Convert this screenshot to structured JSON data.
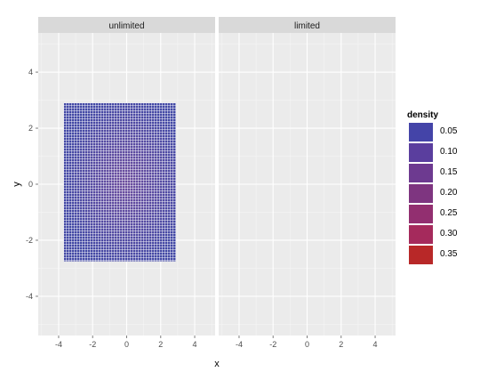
{
  "chart_data": {
    "type": "heatmap",
    "title": "",
    "xlabel": "x",
    "ylabel": "y",
    "facets": [
      {
        "label": "unlimited",
        "xlim": [
          -5.2,
          5.2
        ],
        "ylim": [
          -5.4,
          5.4
        ],
        "tile_region": {
          "x": [
            -3.7,
            2.9
          ],
          "y": [
            -2.75,
            2.9
          ]
        },
        "has_data": true
      },
      {
        "label": "limited",
        "xlim": [
          -5.2,
          5.2
        ],
        "ylim": [
          -5.4,
          5.4
        ],
        "has_data": false
      }
    ],
    "x_ticks": [
      -4,
      -2,
      0,
      2,
      4
    ],
    "y_ticks": [
      -4,
      -2,
      0,
      2,
      4
    ],
    "x_tick_labels": [
      "-4",
      "-2",
      "0",
      "2",
      "4"
    ],
    "y_tick_labels": [
      "-4",
      "-2",
      "0",
      "2",
      "4"
    ],
    "grid": true,
    "legend": {
      "title": "density",
      "position": "right",
      "levels": [
        0.05,
        0.1,
        0.15,
        0.2,
        0.25,
        0.3,
        0.35
      ],
      "labels": [
        "0.05",
        "0.10",
        "0.15",
        "0.20",
        "0.25",
        "0.30",
        "0.35"
      ],
      "colors": [
        "#4444a8",
        "#5a3e9e",
        "#6d3a90",
        "#7e3580",
        "#922f70",
        "#a52a5c",
        "#b82828"
      ]
    },
    "colors": {
      "panel_bg": "#ebebeb",
      "strip_bg": "#d9d9d9",
      "grid_line": "#ffffff",
      "tile_low": "#3f45a3",
      "tile_center": "#6a4a9c"
    }
  }
}
